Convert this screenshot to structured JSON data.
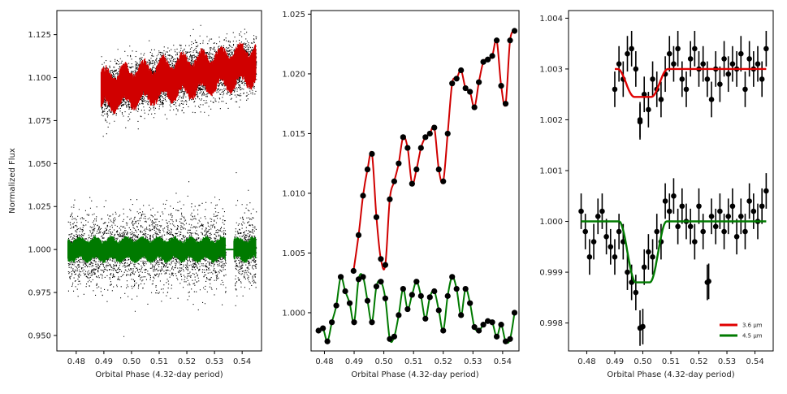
{
  "chart_data": [
    {
      "type": "scatter",
      "xlabel": "Orbital Phase (4.32-day period)",
      "ylabel": "Normalized Flux",
      "xlim": [
        0.473,
        0.547
      ],
      "ylim": [
        0.941,
        1.139
      ],
      "xticks": [
        "0.48",
        "0.49",
        "0.50",
        "0.51",
        "0.52",
        "0.53",
        "0.54"
      ],
      "yticks": [
        "0.950",
        "0.975",
        "1.000",
        "1.025",
        "1.050",
        "1.075",
        "1.100",
        "1.125"
      ],
      "series": [
        {
          "color": "#d00000",
          "x_range": [
            0.489,
            0.545
          ],
          "y_start": 1.092,
          "y_end": 1.108,
          "note_band": true
        },
        {
          "color": "#007a00",
          "x_range": [
            0.477,
            0.545
          ],
          "y_level": 1.0,
          "gap": [
            0.534,
            0.537
          ]
        }
      ],
      "raw_points_color": "#000000"
    },
    {
      "type": "line",
      "xlabel": "Orbital Phase (4.32-day period)",
      "ylabel": "",
      "xlim": [
        0.4755,
        0.5455
      ],
      "ylim": [
        0.9968,
        1.0253
      ],
      "xticks": [
        "0.48",
        "0.49",
        "0.50",
        "0.51",
        "0.52",
        "0.53",
        "0.54"
      ],
      "yticks": [
        "1.000",
        "1.005",
        "1.010",
        "1.015",
        "1.020",
        "1.025"
      ],
      "series": [
        {
          "color": "#d00000",
          "x": [
            0.4898,
            0.4915,
            0.493,
            0.4945,
            0.496,
            0.4975,
            0.499,
            0.5005,
            0.502,
            0.5035,
            0.505,
            0.5065,
            0.508,
            0.5095,
            0.511,
            0.5125,
            0.514,
            0.5155,
            0.517,
            0.5185,
            0.52,
            0.5215,
            0.523,
            0.5245,
            0.526,
            0.5275,
            0.529,
            0.5305,
            0.532,
            0.5335,
            0.535,
            0.5365,
            0.538,
            0.5395,
            0.541,
            0.5425,
            0.544
          ],
          "y": [
            1.0035,
            1.0065,
            1.0098,
            1.012,
            1.0133,
            1.008,
            1.0045,
            1.004,
            1.0095,
            1.011,
            1.0125,
            1.0147,
            1.0138,
            1.0108,
            1.012,
            1.0138,
            1.0147,
            1.015,
            1.0155,
            1.012,
            1.011,
            1.015,
            1.0192,
            1.0196,
            1.0203,
            1.0188,
            1.0185,
            1.0172,
            1.0193,
            1.021,
            1.0212,
            1.0215,
            1.0228,
            1.019,
            1.0175,
            1.0228,
            1.0236
          ]
        },
        {
          "color": "#007a00",
          "x": [
            0.478,
            0.4795,
            0.481,
            0.4825,
            0.484,
            0.4855,
            0.487,
            0.4885,
            0.49,
            0.4915,
            0.493,
            0.4945,
            0.496,
            0.4975,
            0.499,
            0.5005,
            0.502,
            0.5035,
            0.505,
            0.5065,
            0.508,
            0.5095,
            0.511,
            0.5125,
            0.514,
            0.5155,
            0.517,
            0.5185,
            0.52,
            0.5215,
            0.523,
            0.5245,
            0.526,
            0.5275,
            0.529,
            0.5305,
            0.532,
            0.5335,
            0.535,
            0.5365,
            0.538,
            0.5395,
            0.541,
            0.5425,
            0.544
          ],
          "y": [
            0.9985,
            0.9987,
            0.9976,
            0.9992,
            1.0006,
            1.003,
            1.0018,
            1.0008,
            0.9992,
            1.0028,
            1.003,
            1.001,
            0.9992,
            1.0022,
            1.0026,
            1.0012,
            0.9978,
            0.998,
            0.9998,
            1.002,
            1.0003,
            1.0015,
            1.0026,
            1.0014,
            0.9995,
            1.0013,
            1.0018,
            1.0002,
            0.9985,
            1.0014,
            1.003,
            1.002,
            0.9998,
            1.002,
            1.0008,
            0.9988,
            0.9985,
            0.999,
            0.9993,
            0.9992,
            0.998,
            0.999,
            0.9976,
            0.9978,
            1.0
          ]
        }
      ]
    },
    {
      "type": "scatter",
      "xlabel": "Orbital Phase (4.32-day period)",
      "ylabel": "",
      "xlim": [
        0.4735,
        0.5465
      ],
      "ylim": [
        0.99745,
        1.00415
      ],
      "xticks": [
        "0.48",
        "0.49",
        "0.50",
        "0.51",
        "0.52",
        "0.53",
        "0.54"
      ],
      "yticks": [
        "0.998",
        "0.999",
        "1.000",
        "1.001",
        "1.002",
        "1.003",
        "1.004"
      ],
      "legend": {
        "placement": "bottom-right",
        "entries": [
          {
            "label": "3.6 μm",
            "color": "#e00000"
          },
          {
            "label": "4.5 μm",
            "color": "#007a00"
          }
        ]
      },
      "series": [
        {
          "name": "3.6 μm",
          "color": "#e00000",
          "x": [
            0.49,
            0.4915,
            0.493,
            0.4945,
            0.496,
            0.4975,
            0.499,
            0.5005,
            0.502,
            0.5035,
            0.505,
            0.5065,
            0.508,
            0.5095,
            0.511,
            0.5125,
            0.514,
            0.5155,
            0.517,
            0.5185,
            0.52,
            0.5215,
            0.523,
            0.5245,
            0.526,
            0.5275,
            0.529,
            0.5305,
            0.532,
            0.5335,
            0.535,
            0.5365,
            0.538,
            0.5395,
            0.541,
            0.5425,
            0.544
          ],
          "y": [
            1.0026,
            1.0031,
            1.0028,
            1.0033,
            1.0034,
            1.003,
            1.002,
            1.0025,
            1.0022,
            1.0028,
            1.0026,
            1.0024,
            1.0029,
            1.0033,
            1.0031,
            1.0034,
            1.0028,
            1.0026,
            1.0032,
            1.0034,
            1.003,
            1.0031,
            1.0028,
            1.0024,
            1.003,
            1.0027,
            1.0032,
            1.0029,
            1.0031,
            1.003,
            1.0033,
            1.0026,
            1.0032,
            1.003,
            1.0031,
            1.0028,
            1.0034
          ],
          "err": 0.00035,
          "model": {
            "baseline": 1.003,
            "dip": 0.00055,
            "ingress": [
              0.491,
              0.497
            ],
            "egress": [
              0.503,
              0.509
            ]
          }
        },
        {
          "name": "4.5 μm",
          "color": "#007a00",
          "x": [
            0.478,
            0.4795,
            0.481,
            0.4825,
            0.484,
            0.4855,
            0.487,
            0.4885,
            0.49,
            0.4915,
            0.493,
            0.4945,
            0.496,
            0.4975,
            0.499,
            0.5005,
            0.502,
            0.5035,
            0.505,
            0.5065,
            0.508,
            0.5095,
            0.511,
            0.5125,
            0.514,
            0.5155,
            0.517,
            0.5185,
            0.52,
            0.5215,
            0.523,
            0.5245,
            0.526,
            0.5275,
            0.529,
            0.5305,
            0.532,
            0.5335,
            0.535,
            0.5365,
            0.538,
            0.5395,
            0.541,
            0.5425,
            0.544
          ],
          "y": [
            1.0002,
            0.9998,
            0.9993,
            0.9996,
            1.0001,
            1.0002,
            0.9997,
            0.9995,
            0.9993,
            0.9998,
            0.9996,
            0.999,
            0.9988,
            0.9986,
            0.9979,
            0.9991,
            0.9994,
            0.9993,
            0.9998,
            0.9996,
            1.0004,
            1.0002,
            1.0005,
            0.9999,
            1.0003,
            1.0,
            0.9999,
            0.9996,
            1.0003,
            0.9998,
            0.9988,
            1.0001,
            0.9999,
            1.0002,
            0.9998,
            1.0001,
            1.0003,
            0.9997,
            1.0001,
            0.9998,
            1.0004,
            1.0002,
            1.0,
            1.0003,
            1.0006
          ],
          "err": 0.00035,
          "model": {
            "baseline": 1.0,
            "dip": 0.0012,
            "ingress": [
              0.4915,
              0.4975
            ],
            "egress": [
              0.5025,
              0.5085
            ]
          }
        }
      ]
    }
  ]
}
